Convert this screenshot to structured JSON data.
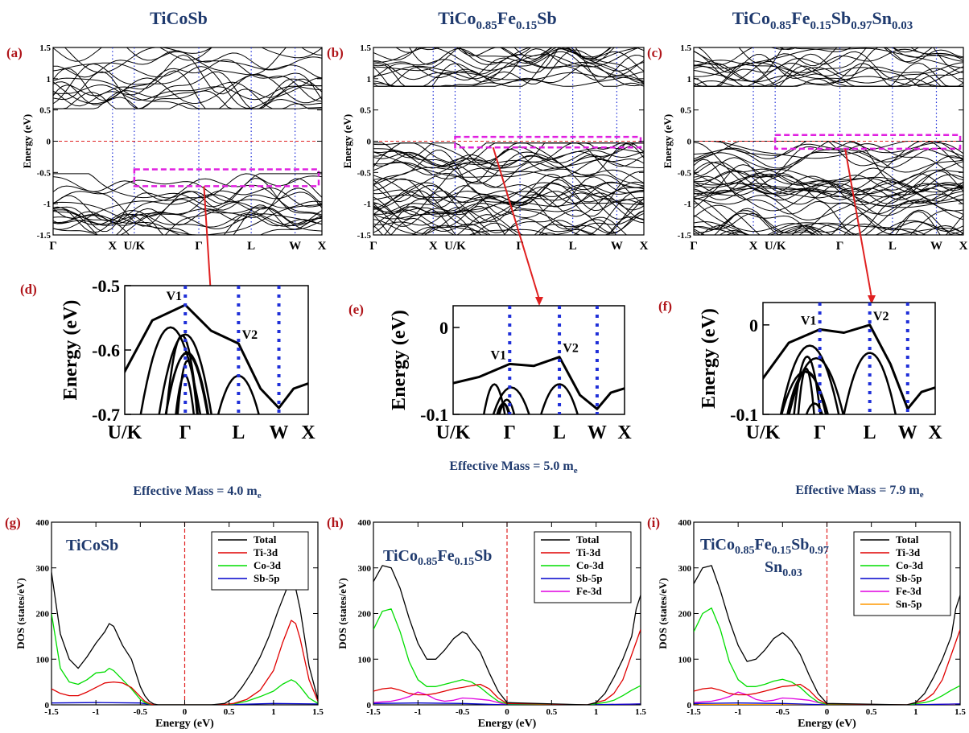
{
  "figure": {
    "columns": [
      {
        "title": "TiCoSb"
      },
      {
        "title_parts": [
          {
            "t": "TiCo"
          },
          {
            "t": "0.85",
            "sub": true
          },
          {
            "t": "Fe"
          },
          {
            "t": "0.15",
            "sub": true
          },
          {
            "t": "Sb"
          }
        ]
      },
      {
        "title_parts": [
          {
            "t": "TiCo"
          },
          {
            "t": "0.85",
            "sub": true
          },
          {
            "t": "Fe"
          },
          {
            "t": "0.15",
            "sub": true
          },
          {
            "t": "Sb"
          },
          {
            "t": "0.97",
            "sub": true
          },
          {
            "t": "Sn"
          },
          {
            "t": "0.03",
            "sub": true
          }
        ]
      }
    ],
    "effective_mass_labels": [
      {
        "prefix": "Effective Mass = 4.0 m",
        "sub": "e"
      },
      {
        "prefix": "Effective Mass = 5.0 m",
        "sub": "e"
      },
      {
        "prefix": "Effective Mass = 7.9 m",
        "sub": "e"
      }
    ],
    "colors": {
      "title": "#1f3a6e",
      "panel_label": "#b0161b",
      "highlight_box": "#e020e0",
      "fermi_line": "#e02020",
      "arrow": "#e02020",
      "kpath_dots": "#1f2fd8"
    }
  },
  "chart_data": [
    {
      "id": "a",
      "panel_label": "(a)",
      "type": "line",
      "subtype": "band_structure",
      "ylabel": "Energy (eV)",
      "ylim": [
        -1.5,
        1.5
      ],
      "yticks": [
        "-1.5",
        "-1",
        "-0.5",
        "0",
        "0.5",
        "1",
        "1.5"
      ],
      "kpoints": [
        "Γ",
        "X",
        "U/K",
        "Γ",
        "L",
        "W",
        "X"
      ],
      "fermi_level": 0,
      "highlight_range": [
        -0.72,
        -0.45
      ],
      "gap": [
        -0.52,
        0.52
      ]
    },
    {
      "id": "b",
      "panel_label": "(b)",
      "type": "line",
      "subtype": "band_structure",
      "ylabel": "Energy (eV)",
      "ylim": [
        -1.5,
        1.5
      ],
      "yticks": [
        "-1.5",
        "-1",
        "-0.5",
        "0",
        "0.5",
        "1",
        "1.5"
      ],
      "kpoints": [
        "Γ",
        "X",
        "U/K",
        "Γ",
        "L",
        "W",
        "X"
      ],
      "fermi_level": 0,
      "highlight_range": [
        -0.1,
        0.07
      ],
      "gap": [
        -0.03,
        0.88
      ]
    },
    {
      "id": "c",
      "panel_label": "(c)",
      "type": "line",
      "subtype": "band_structure",
      "ylabel": "Energy (eV)",
      "ylim": [
        -1.5,
        1.5
      ],
      "yticks": [
        "-1.5",
        "-1",
        "-0.5",
        "0",
        "0.5",
        "1",
        "1.5"
      ],
      "kpoints": [
        "Γ",
        "X",
        "U/K",
        "Γ",
        "L",
        "W",
        "X"
      ],
      "fermi_level": 0,
      "highlight_range": [
        -0.12,
        0.1
      ],
      "gap": [
        0.0,
        0.88
      ]
    },
    {
      "id": "d",
      "panel_label": "(d)",
      "type": "line",
      "subtype": "band_zoom",
      "ylabel": "Energy (eV)",
      "ylim": [
        -0.7,
        -0.5
      ],
      "yticks": [
        "-0.5",
        "-0.6",
        "-0.7"
      ],
      "kpoints": [
        "U/K",
        "Γ",
        "L",
        "W",
        "X"
      ],
      "valleys": [
        {
          "label": "V1",
          "k": "Γ",
          "energy": -0.53
        },
        {
          "label": "V2",
          "k": "L",
          "energy": -0.59
        }
      ]
    },
    {
      "id": "e",
      "panel_label": "(e)",
      "type": "line",
      "subtype": "band_zoom",
      "ylabel": "Energy (eV)",
      "ylim": [
        -0.1,
        0.025
      ],
      "yticks": [
        "0",
        "-0.1"
      ],
      "kpoints": [
        "U/K",
        "Γ",
        "L",
        "W",
        "X"
      ],
      "valleys": [
        {
          "label": "V1",
          "k": "Γ",
          "energy": -0.042
        },
        {
          "label": "V2",
          "k": "L",
          "energy": -0.034
        }
      ]
    },
    {
      "id": "f",
      "panel_label": "(f)",
      "type": "line",
      "subtype": "band_zoom",
      "ylabel": "Energy (eV)",
      "ylim": [
        -0.1,
        0.025
      ],
      "yticks": [
        "0",
        "-0.1"
      ],
      "kpoints": [
        "U/K",
        "Γ",
        "L",
        "W",
        "X"
      ],
      "valleys": [
        {
          "label": "V1",
          "k": "Γ",
          "energy": -0.005
        },
        {
          "label": "V2",
          "k": "L",
          "energy": 0.0
        }
      ]
    },
    {
      "id": "g",
      "panel_label": "(g)",
      "type": "line",
      "subtype": "dos",
      "inline_title": "TiCoSb",
      "xlabel": "Energy (eV)",
      "ylabel": "DOS (states/eV)",
      "xlim": [
        -1.5,
        1.5
      ],
      "ylim": [
        0,
        400
      ],
      "fermi_level": 0,
      "xticks": [
        "-1.5",
        "-1",
        "-0.5",
        "0",
        "0.5",
        "1",
        "1.5"
      ],
      "yticks": [
        "0",
        "100",
        "200",
        "300",
        "400"
      ],
      "legend_position": "top-right",
      "series": [
        {
          "name": "Total",
          "color": "#000000",
          "x": [
            -1.5,
            -1.4,
            -1.3,
            -1.2,
            -1.1,
            -1.0,
            -0.9,
            -0.85,
            -0.8,
            -0.7,
            -0.6,
            -0.5,
            -0.45,
            -0.4,
            -0.35,
            -0.3,
            0.3,
            0.45,
            0.55,
            0.65,
            0.75,
            0.85,
            0.95,
            1.05,
            1.15,
            1.2,
            1.25,
            1.3,
            1.4,
            1.5
          ],
          "y": [
            290,
            155,
            100,
            80,
            105,
            135,
            160,
            178,
            172,
            130,
            100,
            40,
            20,
            8,
            2,
            0,
            0,
            3,
            15,
            40,
            70,
            105,
            150,
            205,
            255,
            268,
            255,
            210,
            85,
            12
          ]
        },
        {
          "name": "Ti-3d",
          "color": "#e00000",
          "x": [
            -1.5,
            -1.4,
            -1.3,
            -1.2,
            -1.1,
            -1.0,
            -0.9,
            -0.8,
            -0.7,
            -0.6,
            -0.5,
            -0.45,
            -0.4,
            -0.35,
            0.4,
            0.55,
            0.7,
            0.85,
            1.0,
            1.1,
            1.2,
            1.25,
            1.3,
            1.4,
            1.5
          ],
          "y": [
            35,
            25,
            20,
            20,
            28,
            38,
            48,
            50,
            48,
            38,
            18,
            8,
            3,
            0,
            0,
            3,
            12,
            32,
            75,
            135,
            185,
            178,
            145,
            55,
            8
          ]
        },
        {
          "name": "Co-3d",
          "color": "#00dd00",
          "x": [
            -1.5,
            -1.4,
            -1.3,
            -1.2,
            -1.1,
            -1.0,
            -0.9,
            -0.85,
            -0.8,
            -0.7,
            -0.6,
            -0.5,
            -0.45,
            -0.4,
            -0.35,
            0.4,
            0.55,
            0.7,
            0.85,
            1.0,
            1.1,
            1.2,
            1.25,
            1.3,
            1.4,
            1.5
          ],
          "y": [
            200,
            80,
            50,
            45,
            55,
            70,
            72,
            80,
            75,
            55,
            35,
            12,
            5,
            2,
            0,
            0,
            2,
            8,
            18,
            30,
            45,
            55,
            50,
            40,
            15,
            3
          ]
        },
        {
          "name": "Sb-5p",
          "color": "#0000cc",
          "x": [
            -1.5,
            -1.0,
            -0.5,
            -0.35,
            0.4,
            1.0,
            1.5
          ],
          "y": [
            4,
            5,
            4,
            0,
            0,
            3,
            2
          ]
        }
      ]
    },
    {
      "id": "h",
      "panel_label": "(h)",
      "type": "line",
      "subtype": "dos",
      "inline_title_parts": [
        {
          "t": "TiCo"
        },
        {
          "t": "0.85",
          "sub": true
        },
        {
          "t": "Fe"
        },
        {
          "t": "0.15",
          "sub": true
        },
        {
          "t": "Sb"
        }
      ],
      "xlabel": "Energy (eV)",
      "ylabel": "DOS (states/eV)",
      "xlim": [
        -1.5,
        1.5
      ],
      "ylim": [
        0,
        400
      ],
      "fermi_level": 0,
      "xticks": [
        "-1.5",
        "-1",
        "-0.5",
        "0",
        "0.5",
        "1",
        "1.5"
      ],
      "yticks": [
        "0",
        "100",
        "200",
        "300",
        "400"
      ],
      "legend_position": "top-right",
      "series": [
        {
          "name": "Total",
          "color": "#000000",
          "x": [
            -1.5,
            -1.4,
            -1.3,
            -1.2,
            -1.1,
            -1.0,
            -0.9,
            -0.8,
            -0.7,
            -0.6,
            -0.5,
            -0.45,
            -0.4,
            -0.3,
            -0.2,
            -0.1,
            0.0,
            0.9,
            1.0,
            1.1,
            1.2,
            1.3,
            1.4,
            1.45,
            1.5
          ],
          "y": [
            270,
            305,
            300,
            255,
            190,
            135,
            100,
            100,
            120,
            145,
            160,
            155,
            140,
            115,
            70,
            30,
            5,
            0,
            5,
            25,
            60,
            100,
            150,
            210,
            240
          ]
        },
        {
          "name": "Ti-3d",
          "color": "#e00000",
          "x": [
            -1.5,
            -1.4,
            -1.3,
            -1.2,
            -1.1,
            -1.0,
            -0.9,
            -0.8,
            -0.7,
            -0.6,
            -0.5,
            -0.4,
            -0.3,
            -0.2,
            -0.1,
            0.0,
            0.9,
            1.1,
            1.2,
            1.3,
            1.4,
            1.5
          ],
          "y": [
            30,
            35,
            37,
            32,
            25,
            22,
            22,
            25,
            30,
            35,
            38,
            42,
            45,
            35,
            15,
            3,
            0,
            10,
            25,
            55,
            110,
            165
          ]
        },
        {
          "name": "Co-3d",
          "color": "#00dd00",
          "x": [
            -1.5,
            -1.4,
            -1.3,
            -1.2,
            -1.1,
            -1.0,
            -0.9,
            -0.8,
            -0.7,
            -0.6,
            -0.5,
            -0.4,
            -0.3,
            -0.2,
            -0.1,
            0.0,
            0.9,
            1.1,
            1.2,
            1.3,
            1.4,
            1.5
          ],
          "y": [
            165,
            205,
            210,
            160,
            95,
            55,
            40,
            40,
            45,
            50,
            55,
            50,
            38,
            22,
            8,
            2,
            0,
            5,
            10,
            20,
            32,
            42
          ]
        },
        {
          "name": "Sb-5p",
          "color": "#0000cc",
          "x": [
            -1.5,
            -1.0,
            -0.5,
            0.0,
            0.9,
            1.5
          ],
          "y": [
            3,
            4,
            3,
            0,
            0,
            2
          ]
        },
        {
          "name": "Fe-3d",
          "color": "#e000e0",
          "x": [
            -1.5,
            -1.3,
            -1.2,
            -1.1,
            -1.0,
            -0.9,
            -0.8,
            -0.7,
            -0.6,
            -0.5,
            -0.4,
            -0.3,
            -0.2,
            -0.1,
            0.0,
            0.9,
            1.5
          ],
          "y": [
            5,
            8,
            12,
            18,
            28,
            22,
            12,
            8,
            10,
            15,
            14,
            12,
            10,
            5,
            0,
            0,
            2
          ]
        }
      ]
    },
    {
      "id": "i",
      "panel_label": "(i)",
      "type": "line",
      "subtype": "dos",
      "inline_title_line1_parts": [
        {
          "t": "TiCo"
        },
        {
          "t": "0.85",
          "sub": true
        },
        {
          "t": "Fe"
        },
        {
          "t": "0.15",
          "sub": true
        },
        {
          "t": "Sb"
        },
        {
          "t": "0.97",
          "sub": true
        }
      ],
      "inline_title_line2_parts": [
        {
          "t": "Sn"
        },
        {
          "t": "0.03",
          "sub": true
        }
      ],
      "xlabel": "Energy (eV)",
      "ylabel": "DOS (states/eV)",
      "xlim": [
        -1.5,
        1.5
      ],
      "ylim": [
        0,
        400
      ],
      "fermi_level": 0,
      "xticks": [
        "-1.5",
        "-1",
        "-0.5",
        "0",
        "0.5",
        "1",
        "1.5"
      ],
      "yticks": [
        "0",
        "100",
        "200",
        "300",
        "400"
      ],
      "legend_position": "top-right",
      "series": [
        {
          "name": "Total",
          "color": "#000000",
          "x": [
            -1.5,
            -1.4,
            -1.3,
            -1.2,
            -1.1,
            -1.0,
            -0.9,
            -0.8,
            -0.7,
            -0.6,
            -0.5,
            -0.45,
            -0.4,
            -0.3,
            -0.2,
            -0.1,
            0.0,
            0.9,
            1.0,
            1.1,
            1.2,
            1.3,
            1.4,
            1.45,
            1.5
          ],
          "y": [
            265,
            300,
            305,
            250,
            185,
            130,
            95,
            100,
            120,
            145,
            158,
            150,
            140,
            110,
            65,
            25,
            3,
            0,
            5,
            25,
            60,
            100,
            150,
            210,
            240
          ]
        },
        {
          "name": "Ti-3d",
          "color": "#e00000",
          "x": [
            -1.5,
            -1.4,
            -1.3,
            -1.2,
            -1.1,
            -1.0,
            -0.9,
            -0.8,
            -0.7,
            -0.6,
            -0.5,
            -0.4,
            -0.3,
            -0.2,
            -0.1,
            0.0,
            0.9,
            1.1,
            1.2,
            1.3,
            1.4,
            1.5
          ],
          "y": [
            30,
            35,
            37,
            32,
            25,
            22,
            22,
            25,
            30,
            35,
            40,
            42,
            45,
            32,
            12,
            2,
            0,
            10,
            25,
            55,
            110,
            165
          ]
        },
        {
          "name": "Co-3d",
          "color": "#00dd00",
          "x": [
            -1.5,
            -1.4,
            -1.3,
            -1.2,
            -1.1,
            -1.0,
            -0.9,
            -0.8,
            -0.7,
            -0.6,
            -0.5,
            -0.4,
            -0.3,
            -0.2,
            -0.1,
            0.0,
            0.9,
            1.1,
            1.2,
            1.3,
            1.4,
            1.5
          ],
          "y": [
            160,
            200,
            212,
            165,
            95,
            55,
            40,
            40,
            45,
            52,
            56,
            50,
            38,
            20,
            6,
            1,
            0,
            5,
            10,
            20,
            32,
            42
          ]
        },
        {
          "name": "Sb-5p",
          "color": "#0000cc",
          "x": [
            -1.5,
            -1.0,
            -0.5,
            0.0,
            0.9,
            1.5
          ],
          "y": [
            3,
            4,
            3,
            0,
            0,
            2
          ]
        },
        {
          "name": "Fe-3d",
          "color": "#e000e0",
          "x": [
            -1.5,
            -1.3,
            -1.2,
            -1.1,
            -1.0,
            -0.9,
            -0.8,
            -0.7,
            -0.6,
            -0.5,
            -0.4,
            -0.3,
            -0.2,
            -0.1,
            0.0,
            0.9,
            1.5
          ],
          "y": [
            5,
            8,
            12,
            18,
            28,
            22,
            12,
            8,
            10,
            15,
            14,
            12,
            10,
            5,
            0,
            0,
            2
          ]
        },
        {
          "name": "Sn-5p",
          "color": "#ff9900",
          "x": [
            -1.5,
            0.0,
            0.9,
            1.5
          ],
          "y": [
            1,
            0,
            0,
            1
          ]
        }
      ]
    }
  ]
}
